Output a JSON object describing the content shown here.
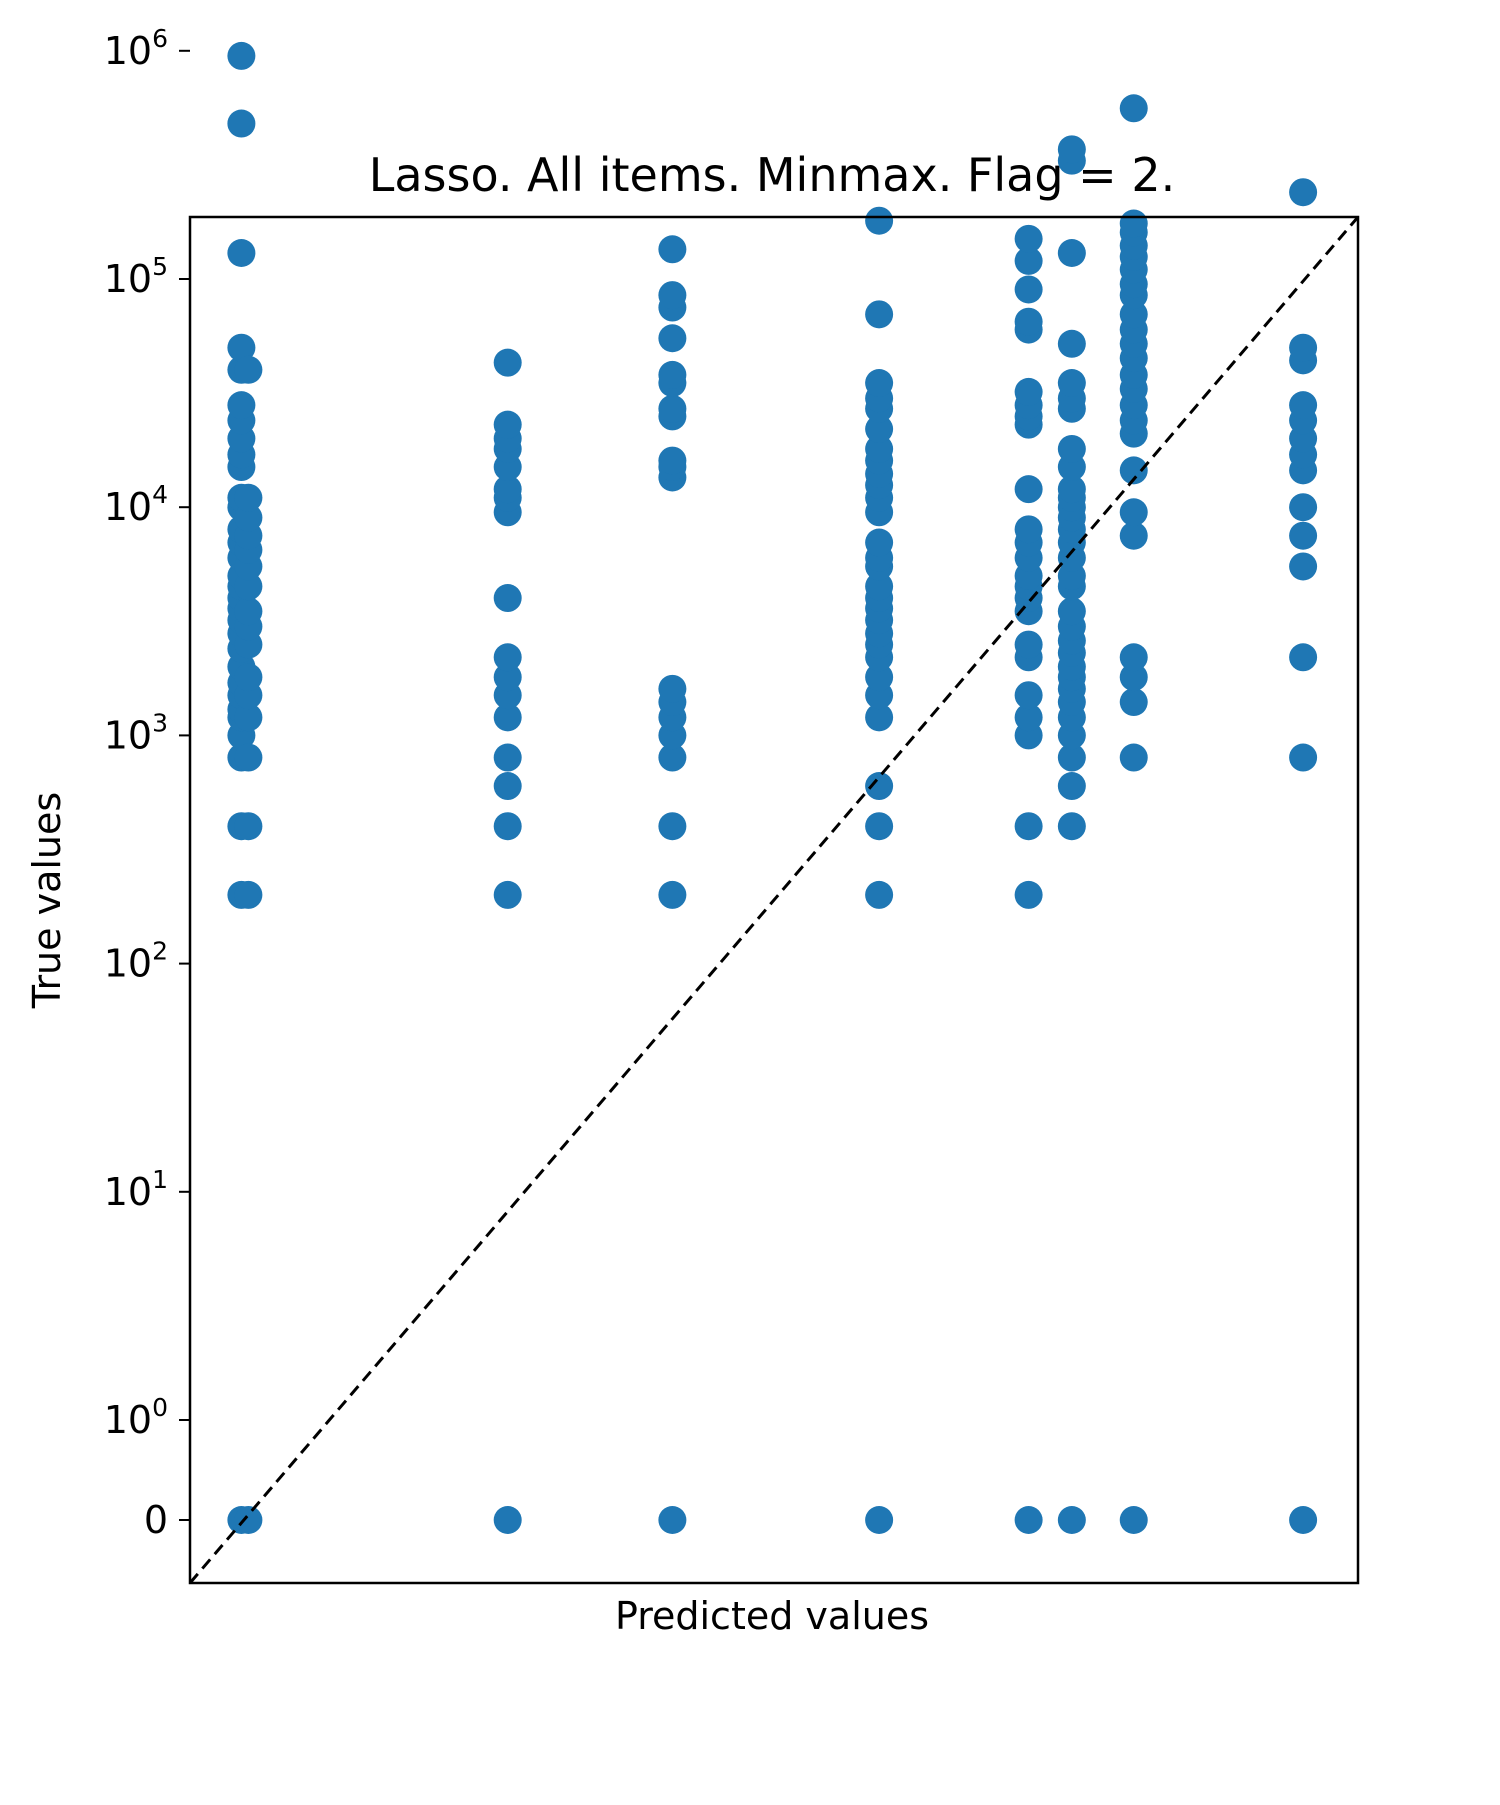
{
  "chart_data": {
    "type": "scatter",
    "title": "Lasso. All items. Minmax. Flag = 2.",
    "xlabel": "Predicted values",
    "ylabel": "True values",
    "y_scale": "symlog",
    "y_linthresh": 1,
    "ylim": [
      -0.35,
      2000000
    ],
    "x_ticks_shown": false,
    "grid": false,
    "marker_color": "#1f77b4",
    "reference_line": {
      "style": "dashed",
      "color": "#000000",
      "description": "y = x"
    },
    "y_ticks": [
      {
        "base": "0",
        "exp": "",
        "value": 0
      },
      {
        "base": "10",
        "exp": "0",
        "value": 1
      },
      {
        "base": "10",
        "exp": "1",
        "value": 10
      },
      {
        "base": "10",
        "exp": "2",
        "value": 100
      },
      {
        "base": "10",
        "exp": "3",
        "value": 1000
      },
      {
        "base": "10",
        "exp": "4",
        "value": 10000
      },
      {
        "base": "10",
        "exp": "5",
        "value": 100000
      },
      {
        "base": "10",
        "exp": "6",
        "value": 1000000
      }
    ],
    "columns": [
      {
        "x": 0.044,
        "values": [
          0,
          200,
          400,
          800,
          1000,
          1200,
          1300,
          1500,
          1700,
          2000,
          2400,
          2800,
          3200,
          3600,
          4000,
          4500,
          5000,
          6000,
          7000,
          8000,
          10000,
          11000,
          15000,
          17000,
          20000,
          24000,
          28000,
          40000,
          50000,
          130000,
          480000,
          950000
        ]
      },
      {
        "x": 0.05,
        "values": [
          0,
          200,
          400,
          800,
          1200,
          1500,
          1800,
          2500,
          3000,
          3500,
          4500,
          5500,
          6500,
          7500,
          9000,
          11000,
          40000
        ]
      },
      {
        "x": 0.272,
        "values": [
          0,
          200,
          400,
          600,
          800,
          1200,
          1500,
          1800,
          2200,
          4000,
          9500,
          11000,
          12000,
          15000,
          18000,
          20000,
          23000,
          43000
        ]
      },
      {
        "x": 0.413,
        "values": [
          0,
          200,
          400,
          800,
          1000,
          1200,
          1400,
          1600,
          13500,
          15000,
          16000,
          25000,
          27000,
          35000,
          38000,
          55000,
          75000,
          85000,
          135000
        ]
      },
      {
        "x": 0.59,
        "values": [
          0,
          200,
          400,
          600,
          1200,
          1500,
          1800,
          2200,
          2500,
          2800,
          3200,
          3600,
          4000,
          4500,
          5500,
          6000,
          7000,
          9500,
          11000,
          12500,
          14000,
          16000,
          18000,
          22000,
          27000,
          30000,
          35000,
          70000,
          180000
        ]
      },
      {
        "x": 0.718,
        "values": [
          0,
          200,
          400,
          1000,
          1200,
          1500,
          2200,
          2500,
          3500,
          4000,
          4500,
          5000,
          6000,
          7000,
          8000,
          12000,
          23000,
          25000,
          28000,
          32000,
          60000,
          65000,
          90000,
          120000,
          150000
        ]
      },
      {
        "x": 0.755,
        "values": [
          0,
          400,
          600,
          800,
          1000,
          1200,
          1400,
          1600,
          1800,
          2000,
          2300,
          2600,
          3000,
          3500,
          4500,
          5000,
          6000,
          7000,
          8000,
          9000,
          10000,
          11000,
          12000,
          15000,
          18000,
          27000,
          30000,
          35000,
          52000,
          130000,
          330000,
          370000
        ]
      },
      {
        "x": 0.808,
        "values": [
          0,
          800,
          1400,
          1800,
          2200,
          7500,
          9500,
          14500,
          21000,
          24000,
          28000,
          33000,
          38000,
          45000,
          52000,
          60000,
          70000,
          85000,
          95000,
          110000,
          125000,
          140000,
          160000,
          175000,
          560000
        ]
      },
      {
        "x": 0.953,
        "values": [
          0,
          800,
          2200,
          5500,
          7500,
          10000,
          14500,
          17000,
          20000,
          24000,
          28000,
          44000,
          50000,
          240000
        ]
      }
    ]
  }
}
